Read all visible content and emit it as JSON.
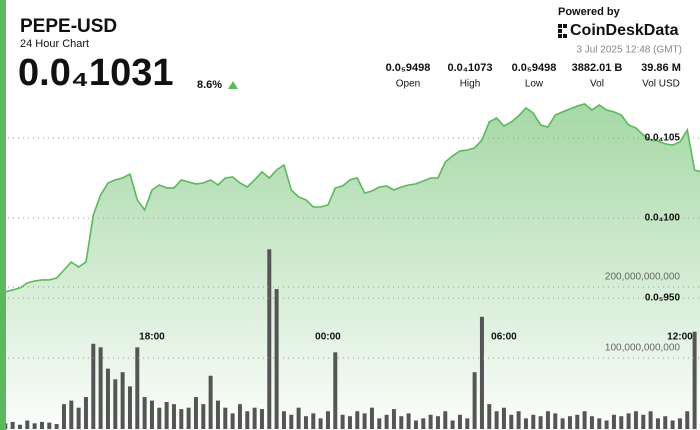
{
  "header": {
    "title": "PEPE-USD",
    "subtitle": "24 Hour Chart",
    "price": "0.0₄1031",
    "change": "8.6%"
  },
  "powered": {
    "label": "Powered by",
    "brand": "CoinDeskData",
    "timestamp": "3 Jul 2025 12:48 (GMT)"
  },
  "stats": [
    {
      "value": "0.0₅9498",
      "label": "Open"
    },
    {
      "value": "0.0₄1073",
      "label": "High"
    },
    {
      "value": "0.0₅9498",
      "label": "Low"
    },
    {
      "value": "3882.01 B",
      "label": "Vol"
    },
    {
      "value": "39.86 M",
      "label": "Vol USD"
    }
  ],
  "chart_data": {
    "type": "line",
    "x": [
      "13:00",
      "13:15",
      "13:30",
      "13:45",
      "14:00",
      "14:15",
      "14:30",
      "14:45",
      "15:00",
      "15:15",
      "15:30",
      "15:45",
      "16:00",
      "16:15",
      "16:30",
      "16:45",
      "17:00",
      "17:15",
      "17:30",
      "17:45",
      "18:00",
      "18:15",
      "18:30",
      "18:45",
      "19:00",
      "19:15",
      "19:30",
      "19:45",
      "20:00",
      "20:15",
      "20:30",
      "20:45",
      "21:00",
      "21:15",
      "21:30",
      "21:45",
      "22:00",
      "22:15",
      "22:30",
      "22:45",
      "23:00",
      "23:15",
      "23:30",
      "23:45",
      "00:00",
      "00:15",
      "00:30",
      "00:45",
      "01:00",
      "01:15",
      "01:30",
      "01:45",
      "02:00",
      "02:15",
      "02:30",
      "02:45",
      "03:00",
      "03:15",
      "03:30",
      "03:45",
      "04:00",
      "04:15",
      "04:30",
      "04:45",
      "05:00",
      "05:15",
      "05:30",
      "05:45",
      "06:00",
      "06:15",
      "06:30",
      "06:45",
      "07:00",
      "07:15",
      "07:30",
      "07:45",
      "08:00",
      "08:15",
      "08:30",
      "08:45",
      "09:00",
      "09:15",
      "09:30",
      "09:45",
      "10:00",
      "10:15",
      "10:30",
      "10:45",
      "11:00",
      "11:15",
      "11:30",
      "11:45",
      "12:00",
      "12:15",
      "12:30",
      "12:45"
    ],
    "series": [
      {
        "name": "Price",
        "color": "#5cb85c",
        "values": [
          9.538e-06,
          9.55e-06,
          9.563e-06,
          9.594e-06,
          9.606e-06,
          9.613e-06,
          9.613e-06,
          9.625e-06,
          9.675e-06,
          9.725e-06,
          9.694e-06,
          9.725e-06,
          1.0019e-05,
          1.0144e-05,
          1.0219e-05,
          1.0238e-05,
          1.025e-05,
          1.0275e-05,
          1.0113e-05,
          1.005e-05,
          1.0175e-05,
          1.0206e-05,
          1.0188e-05,
          1.0188e-05,
          1.0238e-05,
          1.0225e-05,
          1.0213e-05,
          1.0219e-05,
          1.0238e-05,
          1.0206e-05,
          1.025e-05,
          1.0256e-05,
          1.0219e-05,
          1.0194e-05,
          1.0238e-05,
          1.0288e-05,
          1.025e-05,
          1.03e-05,
          1.0331e-05,
          1.0175e-05,
          1.0131e-05,
          1.0113e-05,
          1.0069e-05,
          1.0069e-05,
          1.0081e-05,
          1.0188e-05,
          1.02e-05,
          1.0238e-05,
          1.025e-05,
          1.0156e-05,
          1.0169e-05,
          1.0194e-05,
          1.02e-05,
          1.0175e-05,
          1.0194e-05,
          1.0206e-05,
          1.0213e-05,
          1.0231e-05,
          1.025e-05,
          1.025e-05,
          1.035e-05,
          1.0388e-05,
          1.0419e-05,
          1.0425e-05,
          1.0438e-05,
          1.0488e-05,
          1.06e-05,
          1.0625e-05,
          1.0575e-05,
          1.06e-05,
          1.0638e-05,
          1.0688e-05,
          1.0656e-05,
          1.0581e-05,
          1.0569e-05,
          1.0644e-05,
          1.0663e-05,
          1.0681e-05,
          1.07e-05,
          1.0713e-05,
          1.0675e-05,
          1.0706e-05,
          1.0675e-05,
          1.0663e-05,
          1.0644e-05,
          1.0581e-05,
          1.0563e-05,
          1.0519e-05,
          1.0488e-05,
          1.0481e-05,
          1.0463e-05,
          1.0456e-05,
          1.0475e-05,
          1.055e-05,
          1.03e-05,
          1.0288e-05
        ]
      },
      {
        "name": "Volume",
        "color": "#555555",
        "axis": "y2",
        "values": [
          8000000000.0,
          10000000000.0,
          6000000000.0,
          12000000000.0,
          8000000000.0,
          10000000000.0,
          9000000000.0,
          7000000000.0,
          35000000000.0,
          40000000000.0,
          30000000000.0,
          45000000000.0,
          120000000000.0,
          115000000000.0,
          85000000000.0,
          70000000000.0,
          80000000000.0,
          60000000000.0,
          115000000000.0,
          45000000000.0,
          40000000000.0,
          30000000000.0,
          38000000000.0,
          35000000000.0,
          28000000000.0,
          30000000000.0,
          45000000000.0,
          35000000000.0,
          75000000000.0,
          40000000000.0,
          30000000000.0,
          22000000000.0,
          35000000000.0,
          25000000000.0,
          30000000000.0,
          28000000000.0,
          253000000000.0,
          197000000000.0,
          25000000000.0,
          20000000000.0,
          30000000000.0,
          18000000000.0,
          22000000000.0,
          15000000000.0,
          25000000000.0,
          108000000000.0,
          20000000000.0,
          18000000000.0,
          25000000000.0,
          22000000000.0,
          30000000000.0,
          15000000000.0,
          20000000000.0,
          28000000000.0,
          18000000000.0,
          22000000000.0,
          12000000000.0,
          15000000000.0,
          20000000000.0,
          18000000000.0,
          25000000000.0,
          12000000000.0,
          20000000000.0,
          15000000000.0,
          80000000000.0,
          158000000000.0,
          35000000000.0,
          25000000000.0,
          30000000000.0,
          20000000000.0,
          25000000000.0,
          15000000000.0,
          20000000000.0,
          18000000000.0,
          25000000000.0,
          22000000000.0,
          15000000000.0,
          18000000000.0,
          20000000000.0,
          25000000000.0,
          18000000000.0,
          15000000000.0,
          12000000000.0,
          20000000000.0,
          18000000000.0,
          22000000000.0,
          25000000000.0,
          20000000000.0,
          25000000000.0,
          15000000000.0,
          18000000000.0,
          12000000000.0,
          15000000000.0,
          25000000000.0,
          137000000000.0,
          10000000000.0
        ]
      }
    ],
    "xticks": [
      "18:00",
      "00:00",
      "06:00",
      "12:00"
    ],
    "ylim": [
      8.675e-06,
      1.13625e-05
    ],
    "yticks": [
      {
        "value": 1.05e-05,
        "label": "0.0₄105"
      },
      {
        "value": 1e-05,
        "label": "0.0₄100"
      },
      {
        "value": 9.5e-06,
        "label": "0.0₅950"
      }
    ],
    "y2lim": [
      0,
      604000000000.0
    ],
    "y2ticks": [
      {
        "value": 200000000000.0,
        "label": "200,000,000,000"
      },
      {
        "value": 100000000000.0,
        "label": "100,000,000,000"
      }
    ],
    "grid": true
  }
}
